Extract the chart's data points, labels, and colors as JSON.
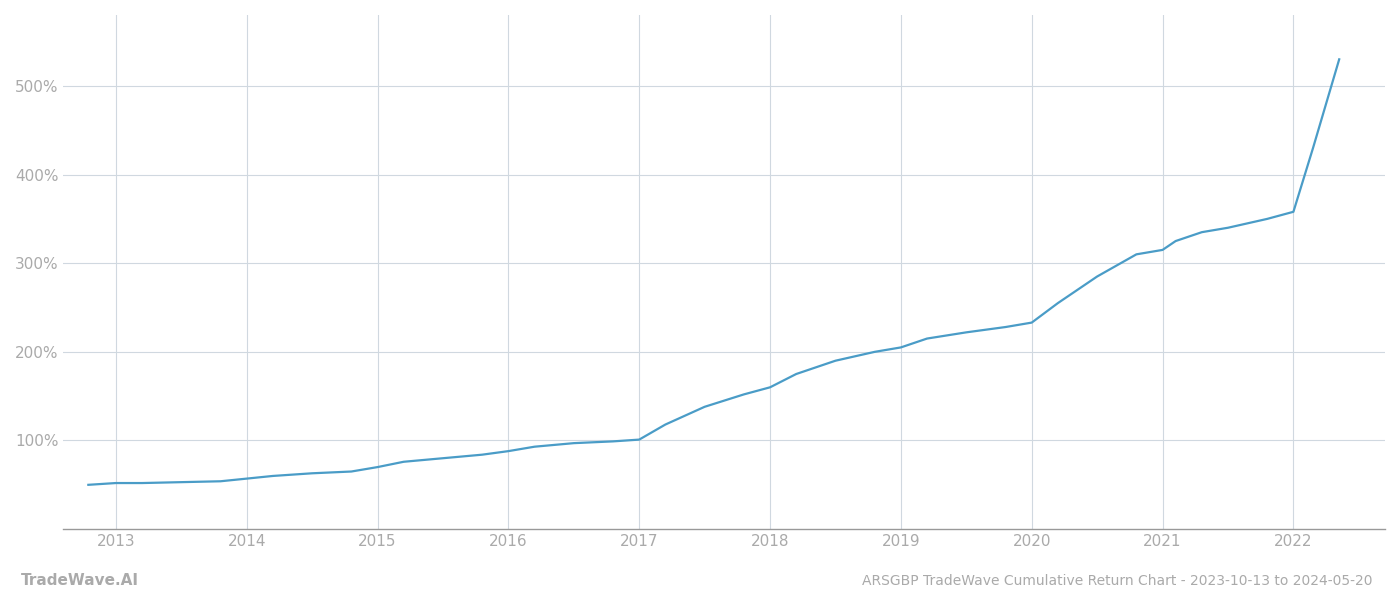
{
  "title": "ARSGBP TradeWave Cumulative Return Chart - 2023-10-13 to 2024-05-20",
  "watermark": "TradeWave.AI",
  "line_color": "#4a9cc7",
  "background_color": "#ffffff",
  "grid_color": "#d0d8e0",
  "x_years": [
    2013,
    2014,
    2015,
    2016,
    2017,
    2018,
    2019,
    2020,
    2021,
    2022
  ],
  "x_data": [
    2012.79,
    2013.0,
    2013.2,
    2013.5,
    2013.8,
    2014.0,
    2014.2,
    2014.5,
    2014.8,
    2015.0,
    2015.2,
    2015.5,
    2015.8,
    2016.0,
    2016.2,
    2016.5,
    2016.8,
    2017.0,
    2017.2,
    2017.5,
    2017.8,
    2018.0,
    2018.2,
    2018.5,
    2018.8,
    2019.0,
    2019.2,
    2019.5,
    2019.8,
    2020.0,
    2020.2,
    2020.5,
    2020.8,
    2021.0,
    2021.1,
    2021.3,
    2021.5,
    2021.8,
    2022.0,
    2022.15,
    2022.35
  ],
  "y_data": [
    50,
    52,
    52,
    53,
    54,
    57,
    60,
    63,
    65,
    70,
    76,
    80,
    84,
    88,
    93,
    97,
    99,
    101,
    118,
    138,
    152,
    160,
    175,
    190,
    200,
    205,
    215,
    222,
    228,
    233,
    255,
    285,
    310,
    315,
    325,
    335,
    340,
    350,
    358,
    430,
    530
  ],
  "ylim": [
    0,
    580
  ],
  "xlim": [
    2012.6,
    2022.7
  ],
  "yticks": [
    100,
    200,
    300,
    400,
    500
  ],
  "line_width": 1.6,
  "figsize": [
    14,
    6
  ],
  "dpi": 100,
  "title_fontsize": 10,
  "watermark_fontsize": 11,
  "tick_fontsize": 11,
  "tick_color": "#aaaaaa",
  "spine_color": "#999999"
}
